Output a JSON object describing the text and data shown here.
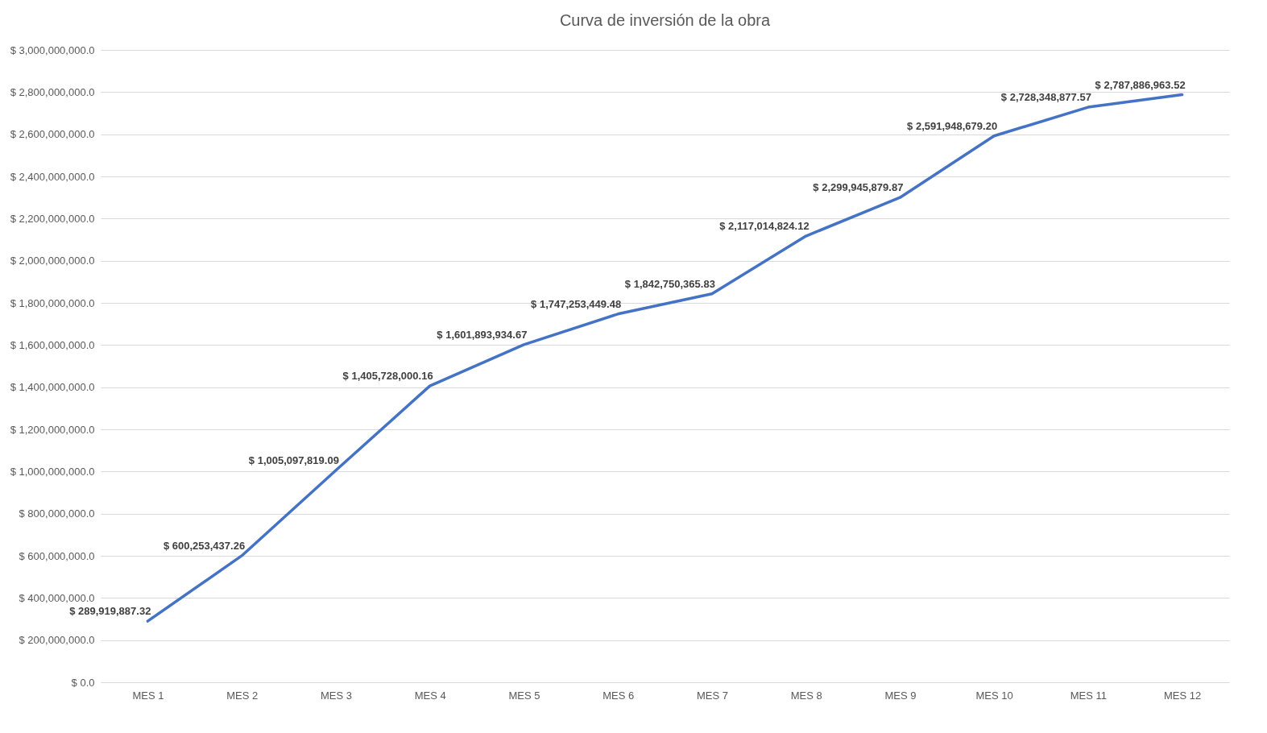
{
  "chart_data": {
    "type": "line",
    "title": "Curva de inversión de la obra",
    "categories": [
      "MES 1",
      "MES 2",
      "MES 3",
      "MES 4",
      "MES 5",
      "MES 6",
      "MES 7",
      "MES 8",
      "MES 9",
      "MES 10",
      "MES 11",
      "MES 12"
    ],
    "series": [
      {
        "color": "#4472c4",
        "values": [
          289919887.32,
          600253437.26,
          1005097819.09,
          1405728000.16,
          1601893934.67,
          1747253449.48,
          1842750365.83,
          2117014824.12,
          2299945879.87,
          2591948679.2,
          2728348877.57,
          2787886963.52
        ],
        "value_labels": [
          "$ 289,919,887.32",
          "$ 600,253,437.26",
          "$ 1,005,097,819.09",
          "$ 1,405,728,000.16",
          "$ 1,601,893,934.67",
          "$ 1,747,253,449.48",
          "$ 1,842,750,365.83",
          "$ 2,117,014,824.12",
          "$ 2,299,945,879.87",
          "$ 2,591,948,679.20",
          "$ 2,728,348,877.57",
          "$ 2,787,886,963.52"
        ]
      }
    ],
    "ylim": [
      0,
      3000000000
    ],
    "yticks": [
      {
        "value": 0,
        "label": "$ 0.0"
      },
      {
        "value": 200000000,
        "label": "$ 200,000,000.0"
      },
      {
        "value": 400000000,
        "label": "$ 400,000,000.0"
      },
      {
        "value": 600000000,
        "label": "$ 600,000,000.0"
      },
      {
        "value": 800000000,
        "label": "$ 800,000,000.0"
      },
      {
        "value": 1000000000,
        "label": "$ 1,000,000,000.0"
      },
      {
        "value": 1200000000,
        "label": "$ 1,200,000,000.0"
      },
      {
        "value": 1400000000,
        "label": "$ 1,400,000,000.0"
      },
      {
        "value": 1600000000,
        "label": "$ 1,600,000,000.0"
      },
      {
        "value": 1800000000,
        "label": "$ 1,800,000,000.0"
      },
      {
        "value": 2000000000,
        "label": "$ 2,000,000,000.0"
      },
      {
        "value": 2200000000,
        "label": "$ 2,200,000,000.0"
      },
      {
        "value": 2400000000,
        "label": "$ 2,400,000,000.0"
      },
      {
        "value": 2600000000,
        "label": "$ 2,600,000,000.0"
      },
      {
        "value": 2800000000,
        "label": "$ 2,800,000,000.0"
      },
      {
        "value": 3000000000,
        "label": "$ 3,000,000,000.0"
      }
    ],
    "grid": "y",
    "marker": "none",
    "line_style": "solid"
  }
}
